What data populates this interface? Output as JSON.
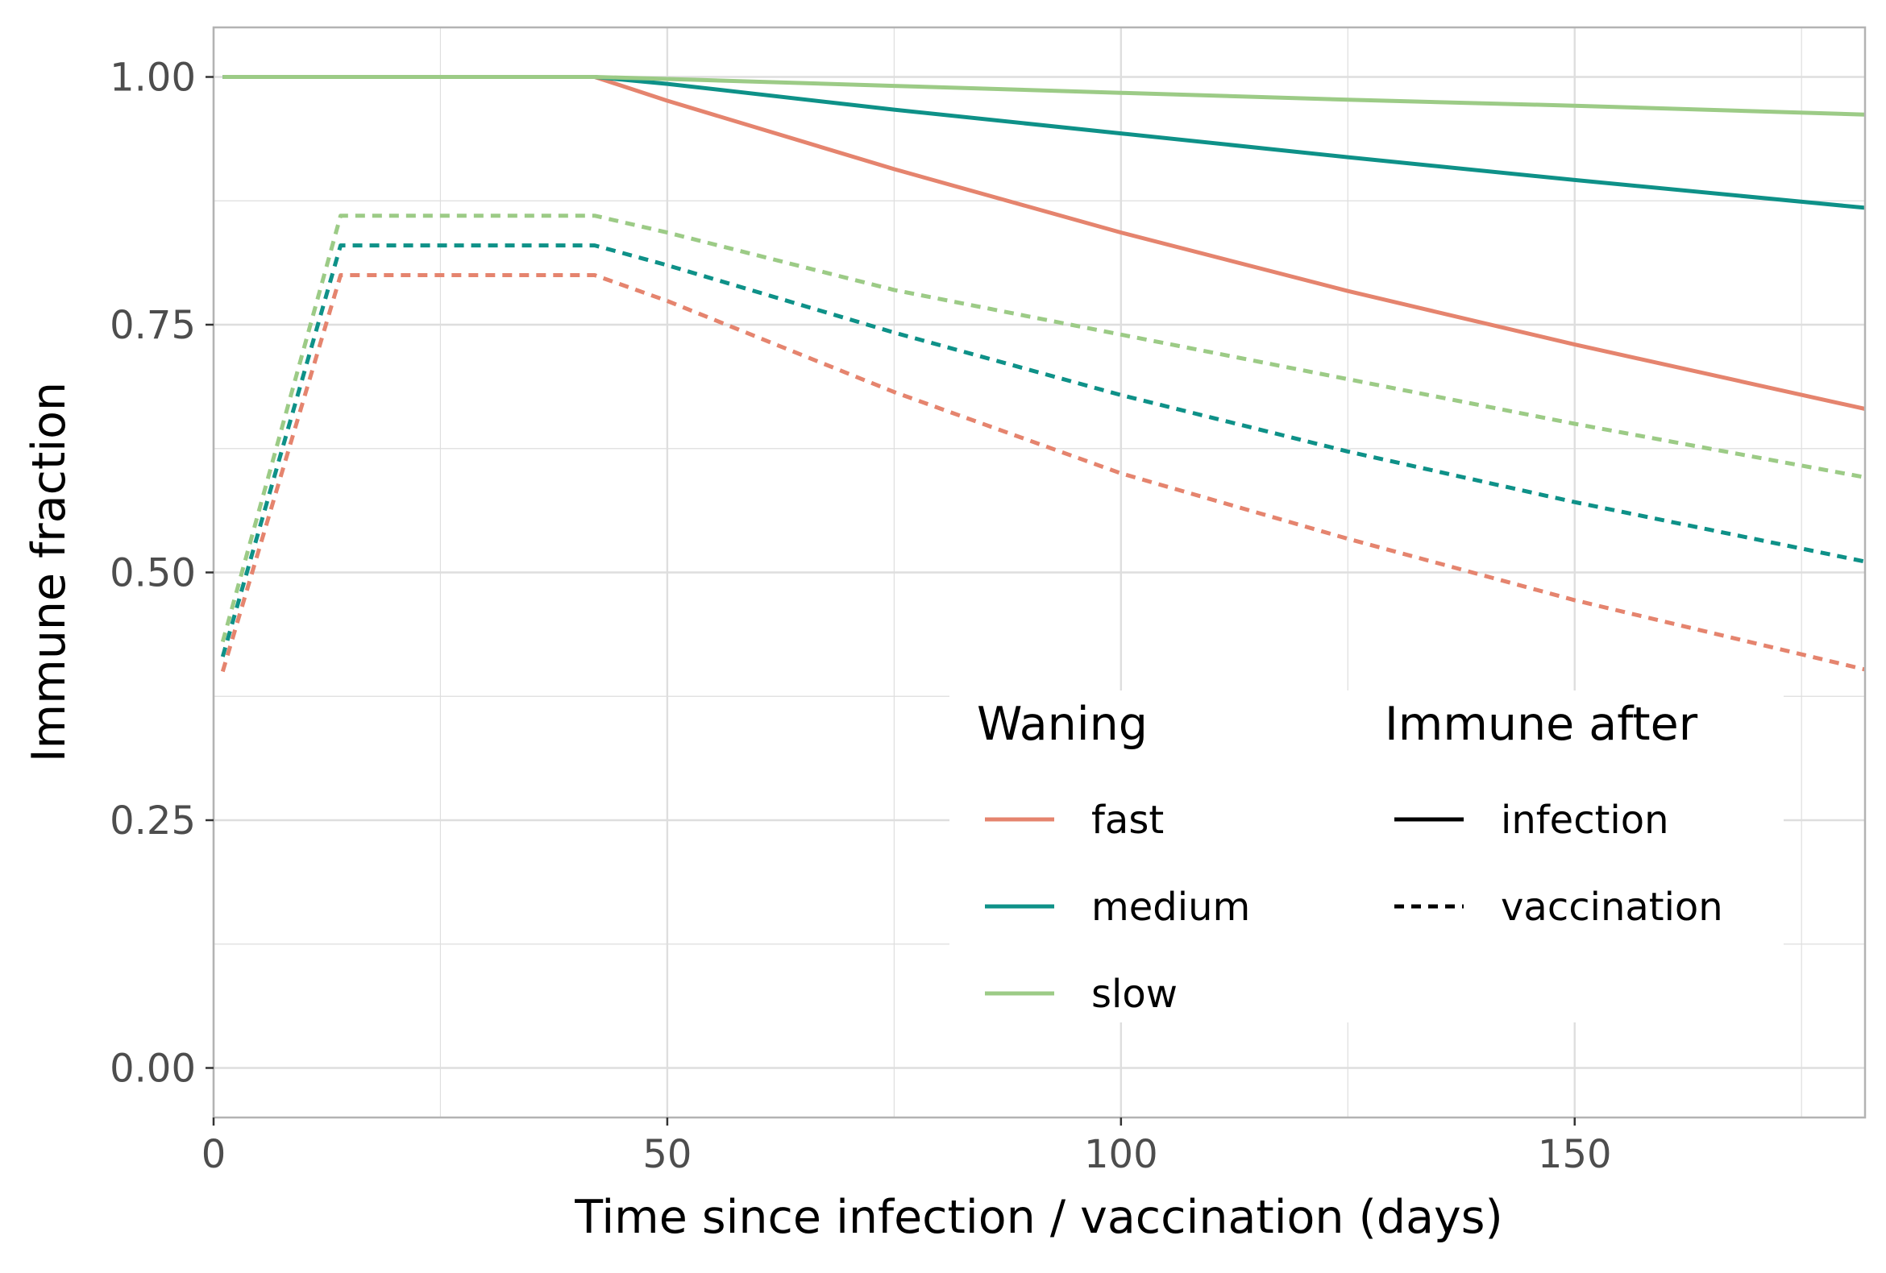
{
  "chart_data": {
    "type": "line",
    "xlabel": "Time since infection / vaccination (days)",
    "ylabel": "Immune fraction",
    "xlim": [
      0,
      182
    ],
    "ylim": [
      -0.05,
      1.05
    ],
    "x_ticks": [
      0,
      50,
      100,
      150
    ],
    "x_tick_labels": [
      "0",
      "50",
      "100",
      "150"
    ],
    "x_minor_ticks": [
      25,
      75,
      125,
      175
    ],
    "y_ticks": [
      0,
      0.25,
      0.5,
      0.75,
      1.0
    ],
    "y_tick_labels": [
      "0.00",
      "0.25",
      "0.50",
      "0.75",
      "1.00"
    ],
    "y_minor_ticks": [
      0.125,
      0.375,
      0.625,
      0.875
    ],
    "grid": true,
    "colors": {
      "fast": "#E5846E",
      "medium": "#0E9188",
      "slow": "#9CCB86",
      "grid": "#dedede",
      "panel_border": "#b3b3b3"
    },
    "legend": {
      "position": "bottom-right",
      "waning": {
        "title": "Waning",
        "items": [
          {
            "label": "fast",
            "color": "#E5846E"
          },
          {
            "label": "medium",
            "color": "#0E9188"
          },
          {
            "label": "slow",
            "color": "#9CCB86"
          }
        ]
      },
      "immune_after": {
        "title": "Immune after",
        "items": [
          {
            "label": "infection",
            "linetype": "solid"
          },
          {
            "label": "vaccination",
            "linetype": "dashed"
          }
        ]
      }
    },
    "series": [
      {
        "waning": "fast",
        "immune_after": "infection",
        "x": [
          1,
          42,
          50,
          75,
          100,
          125,
          150,
          182
        ],
        "y": [
          1.0,
          1.0,
          0.976,
          0.907,
          0.843,
          0.784,
          0.73,
          0.665
        ]
      },
      {
        "waning": "medium",
        "immune_after": "infection",
        "x": [
          1,
          42,
          50,
          75,
          100,
          125,
          150,
          182
        ],
        "y": [
          1.0,
          1.0,
          0.993,
          0.967,
          0.943,
          0.919,
          0.896,
          0.868
        ]
      },
      {
        "waning": "slow",
        "immune_after": "infection",
        "x": [
          1,
          42,
          50,
          75,
          100,
          125,
          150,
          182
        ],
        "y": [
          1.0,
          1.0,
          0.998,
          0.991,
          0.984,
          0.977,
          0.971,
          0.962
        ]
      },
      {
        "waning": "fast",
        "immune_after": "vaccination",
        "x": [
          1,
          14,
          42,
          50,
          75,
          100,
          125,
          150,
          182
        ],
        "y": [
          0.4,
          0.8,
          0.8,
          0.774,
          0.682,
          0.6,
          0.534,
          0.472,
          0.402
        ]
      },
      {
        "waning": "medium",
        "immune_after": "vaccination",
        "x": [
          1,
          14,
          42,
          50,
          75,
          100,
          125,
          150,
          182
        ],
        "y": [
          0.415,
          0.83,
          0.83,
          0.81,
          0.742,
          0.679,
          0.622,
          0.571,
          0.511
        ]
      },
      {
        "waning": "slow",
        "immune_after": "vaccination",
        "x": [
          1,
          14,
          42,
          50,
          75,
          100,
          125,
          150,
          182
        ],
        "y": [
          0.43,
          0.86,
          0.86,
          0.843,
          0.785,
          0.74,
          0.695,
          0.65,
          0.596
        ]
      }
    ]
  }
}
